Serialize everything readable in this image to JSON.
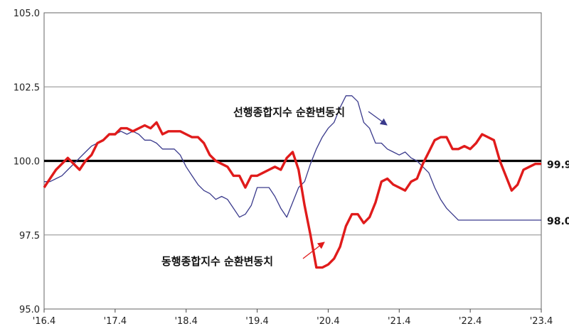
{
  "chart_data": {
    "type": "line",
    "ylim": [
      95.0,
      105.0
    ],
    "y_ticks": [
      "95.0",
      "97.5",
      "100.0",
      "102.5",
      "105.0"
    ],
    "x_range": [
      2016.25,
      2023.25
    ],
    "x_ticks": [
      {
        "x": 2016.25,
        "label": "'16.4"
      },
      {
        "x": 2017.25,
        "label": "'17.4"
      },
      {
        "x": 2018.25,
        "label": "'18.4"
      },
      {
        "x": 2019.25,
        "label": "'19.4"
      },
      {
        "x": 2020.25,
        "label": "'20.4"
      },
      {
        "x": 2021.25,
        "label": "'21.4"
      },
      {
        "x": 2022.25,
        "label": "'22.4"
      },
      {
        "x": 2023.25,
        "label": "'23.4"
      }
    ],
    "reference_line": 100.0,
    "series": [
      {
        "name": "선행종합지수 순환변동치",
        "color": "#3a3a8c",
        "end_label": "98.0",
        "x": [
          2016.25,
          2016.333,
          2016.417,
          2016.5,
          2016.583,
          2016.667,
          2016.75,
          2016.833,
          2016.917,
          2017.0,
          2017.083,
          2017.167,
          2017.25,
          2017.333,
          2017.417,
          2017.5,
          2017.583,
          2017.667,
          2017.75,
          2017.833,
          2017.917,
          2018.0,
          2018.083,
          2018.167,
          2018.25,
          2018.333,
          2018.417,
          2018.5,
          2018.583,
          2018.667,
          2018.75,
          2018.833,
          2018.917,
          2019.0,
          2019.083,
          2019.167,
          2019.25,
          2019.333,
          2019.417,
          2019.5,
          2019.583,
          2019.667,
          2019.75,
          2019.833,
          2019.917,
          2020.0,
          2020.083,
          2020.167,
          2020.25,
          2020.333,
          2020.417,
          2020.5,
          2020.583,
          2020.667,
          2020.75,
          2020.833,
          2020.917,
          2021.0,
          2021.083,
          2021.167,
          2021.25,
          2021.333,
          2021.417,
          2021.5,
          2021.583,
          2021.667,
          2021.75,
          2021.833,
          2021.917,
          2022.0,
          2022.083,
          2022.167,
          2022.25,
          2022.333,
          2022.417,
          2022.5,
          2022.583,
          2022.667,
          2022.75,
          2022.833,
          2022.917,
          2023.0,
          2023.083,
          2023.167,
          2023.25
        ],
        "values": [
          99.3,
          99.3,
          99.4,
          99.5,
          99.7,
          99.9,
          100.1,
          100.3,
          100.5,
          100.6,
          100.7,
          100.9,
          100.9,
          101.0,
          100.9,
          101.0,
          100.9,
          100.7,
          100.7,
          100.6,
          100.4,
          100.4,
          100.4,
          100.2,
          99.8,
          99.5,
          99.2,
          99.0,
          98.9,
          98.7,
          98.8,
          98.7,
          98.4,
          98.1,
          98.2,
          98.5,
          99.1,
          99.1,
          99.1,
          98.8,
          98.4,
          98.1,
          98.6,
          99.1,
          99.3,
          99.9,
          100.4,
          100.8,
          101.1,
          101.3,
          101.8,
          102.2,
          102.2,
          102.0,
          101.3,
          101.1,
          100.6,
          100.6,
          100.4,
          100.3,
          100.2,
          100.3,
          100.1,
          100.0,
          99.8,
          99.6,
          99.1,
          98.7,
          98.4,
          98.2,
          98.0,
          98.0,
          98.0,
          98.0,
          98.0,
          98.0,
          98.0,
          98.0,
          98.0,
          98.0,
          98.0,
          98.0,
          98.0,
          98.0,
          98.0
        ]
      },
      {
        "name": "동행종합지수 순환변동치",
        "color": "#e01b1b",
        "end_label": "99.9",
        "x": [
          2016.25,
          2016.333,
          2016.417,
          2016.5,
          2016.583,
          2016.667,
          2016.75,
          2016.833,
          2016.917,
          2017.0,
          2017.083,
          2017.167,
          2017.25,
          2017.333,
          2017.417,
          2017.5,
          2017.583,
          2017.667,
          2017.75,
          2017.833,
          2017.917,
          2018.0,
          2018.083,
          2018.167,
          2018.25,
          2018.333,
          2018.417,
          2018.5,
          2018.583,
          2018.667,
          2018.75,
          2018.833,
          2018.917,
          2019.0,
          2019.083,
          2019.167,
          2019.25,
          2019.333,
          2019.417,
          2019.5,
          2019.583,
          2019.667,
          2019.75,
          2019.833,
          2019.917,
          2020.0,
          2020.083,
          2020.167,
          2020.25,
          2020.333,
          2020.417,
          2020.5,
          2020.583,
          2020.667,
          2020.75,
          2020.833,
          2020.917,
          2021.0,
          2021.083,
          2021.167,
          2021.25,
          2021.333,
          2021.417,
          2021.5,
          2021.583,
          2021.667,
          2021.75,
          2021.833,
          2021.917,
          2022.0,
          2022.083,
          2022.167,
          2022.25,
          2022.333,
          2022.417,
          2022.5,
          2022.583,
          2022.667,
          2022.75,
          2022.833,
          2022.917,
          2023.0,
          2023.083,
          2023.167,
          2023.25
        ],
        "values": [
          99.1,
          99.4,
          99.7,
          99.9,
          100.1,
          99.9,
          99.7,
          100.0,
          100.2,
          100.6,
          100.7,
          100.9,
          100.9,
          101.1,
          101.1,
          101.0,
          101.1,
          101.2,
          101.1,
          101.3,
          100.9,
          101.0,
          101.0,
          101.0,
          100.9,
          100.8,
          100.8,
          100.6,
          100.2,
          100.0,
          99.9,
          99.8,
          99.5,
          99.5,
          99.1,
          99.5,
          99.5,
          99.6,
          99.7,
          99.8,
          99.7,
          100.1,
          100.3,
          99.7,
          98.5,
          97.5,
          96.4,
          96.4,
          96.5,
          96.7,
          97.1,
          97.8,
          98.2,
          98.2,
          97.9,
          98.1,
          98.6,
          99.3,
          99.4,
          99.2,
          99.1,
          99.0,
          99.3,
          99.4,
          99.9,
          100.3,
          100.7,
          100.8,
          100.8,
          100.4,
          100.4,
          100.5,
          100.4,
          100.6,
          100.9,
          100.8,
          100.7,
          100.0,
          99.5,
          99.0,
          99.2,
          99.7,
          99.8,
          99.9,
          99.9
        ]
      }
    ],
    "annotations": [
      {
        "series": 0,
        "text": "선행종합지수 순환변동치"
      },
      {
        "series": 1,
        "text": "동행종합지수 순환변동치"
      }
    ]
  }
}
